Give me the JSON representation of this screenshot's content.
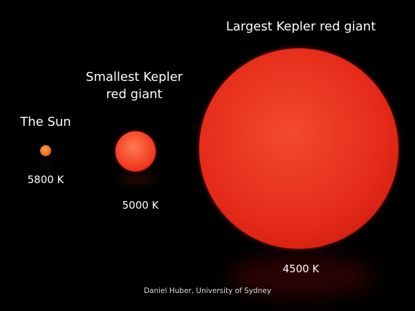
{
  "labels": {
    "sun": "The Sun",
    "smallest_line1": "Smallest Kepler",
    "smallest_line2": "red giant",
    "largest": "Largest Kepler red giant"
  },
  "temperatures": {
    "sun": "5800 K",
    "smallest": "5000 K",
    "largest": "4500 K"
  },
  "credit": "Daniel Huber, University of Sydney",
  "colors": {
    "background": "#000000",
    "sun": "#f07a30",
    "smallest": "#f03a20",
    "largest": "#e82a1a"
  }
}
